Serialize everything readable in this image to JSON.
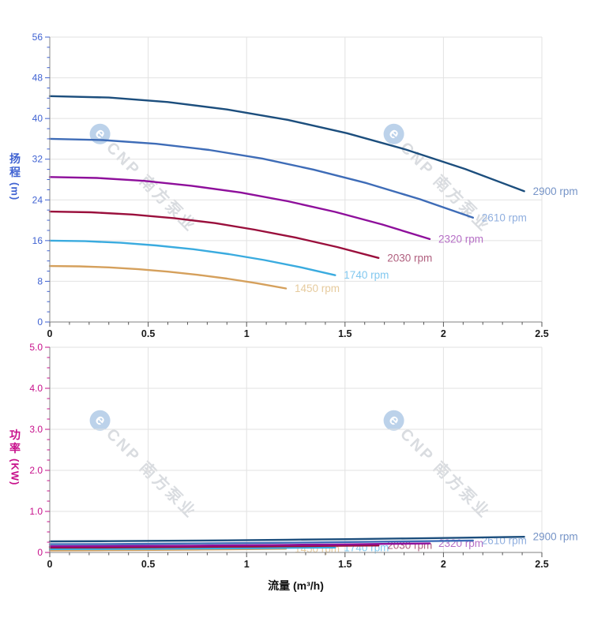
{
  "watermark": {
    "logo_char": "e",
    "text": "CNP 南方泵业",
    "logo_color": "#bcd2ea",
    "text_color": "#d9dce0"
  },
  "axes_style": {
    "x_tick_label_color": "#1a1a1a",
    "grid_color": "#e2e2e2",
    "axis_line_color": "#9b9b9b",
    "x_tick_mark_color": "#555555"
  },
  "chart_data": [
    {
      "type": "line",
      "title": "",
      "xlabel": "",
      "ylabel": "扬程 (m)",
      "ylabel_parts": [
        "扬",
        "程",
        "(m)"
      ],
      "axis_color": "#3f62d2",
      "xlim": [
        0,
        2.5
      ],
      "ylim": [
        0,
        56
      ],
      "x_ticks": [
        0,
        0.5,
        1,
        1.5,
        2,
        2.5
      ],
      "x_tick_labels": [
        "0",
        "0.5",
        "1",
        "1.5",
        "2",
        "2.5"
      ],
      "x_minor_step": 0.1,
      "y_ticks": [
        0,
        8,
        16,
        24,
        32,
        40,
        48,
        56
      ],
      "y_tick_labels": [
        "0",
        "8",
        "16",
        "24",
        "32",
        "40",
        "48",
        "56"
      ],
      "y_minor_step": 2,
      "grid": true,
      "legend": "inline labels at curve ends",
      "series": [
        {
          "name": "2900 rpm",
          "color": "#1c4e7d",
          "label_color": "#7694c7",
          "x": [
            0,
            0.3,
            0.6,
            0.9,
            1.21,
            1.51,
            1.81,
            2.11,
            2.41
          ],
          "y": [
            44.4,
            44.11,
            43.23,
            41.77,
            39.73,
            37.1,
            33.88,
            30.08,
            25.7
          ]
        },
        {
          "name": "2610 rpm",
          "color": "#3e6cb7",
          "label_color": "#90afdf",
          "x": [
            0,
            0.27,
            0.54,
            0.81,
            1.08,
            1.34,
            1.61,
            1.88,
            2.15
          ],
          "y": [
            36.0,
            35.76,
            35.03,
            33.82,
            32.13,
            29.95,
            27.28,
            24.13,
            20.5
          ]
        },
        {
          "name": "2320 rpm",
          "color": "#8e0f9b",
          "label_color": "#b66fc6",
          "x": [
            0,
            0.24,
            0.48,
            0.72,
            0.97,
            1.21,
            1.45,
            1.69,
            1.93
          ],
          "y": [
            28.5,
            28.31,
            27.74,
            26.78,
            25.45,
            23.74,
            21.64,
            19.16,
            16.3
          ]
        },
        {
          "name": "2030 rpm",
          "color": "#9a0f3c",
          "label_color": "#b0607f",
          "x": [
            0,
            0.21,
            0.42,
            0.63,
            0.84,
            1.04,
            1.25,
            1.46,
            1.67
          ],
          "y": [
            21.7,
            21.56,
            21.13,
            20.42,
            19.43,
            18.15,
            16.58,
            14.73,
            12.6
          ]
        },
        {
          "name": "1740 rpm",
          "color": "#3aabdf",
          "label_color": "#82c8ef",
          "x": [
            0,
            0.18,
            0.36,
            0.54,
            0.73,
            0.91,
            1.09,
            1.27,
            1.45
          ],
          "y": [
            16.0,
            15.89,
            15.58,
            15.04,
            14.3,
            13.34,
            12.18,
            10.79,
            9.2
          ]
        },
        {
          "name": "1450 rpm",
          "color": "#d5a05c",
          "label_color": "#e6cb9e",
          "x": [
            0,
            0.15,
            0.3,
            0.45,
            0.6,
            0.75,
            0.9,
            1.05,
            1.2
          ],
          "y": [
            11.0,
            10.93,
            10.73,
            10.38,
            9.9,
            9.28,
            8.53,
            7.63,
            6.6
          ]
        }
      ]
    },
    {
      "type": "line",
      "title": "",
      "xlabel": "流量 (m³/h)",
      "ylabel": "功率 (KW)",
      "ylabel_parts": [
        "功",
        "率",
        "(KW)"
      ],
      "axis_color": "#c7108b",
      "xlim": [
        0,
        2.5
      ],
      "ylim": [
        0,
        5.0
      ],
      "x_ticks": [
        0,
        0.5,
        1,
        1.5,
        2,
        2.5
      ],
      "x_tick_labels": [
        "0",
        "0.5",
        "1",
        "1.5",
        "2",
        "2.5"
      ],
      "x_minor_step": 0.1,
      "y_ticks": [
        0,
        1.0,
        2.0,
        3.0,
        4.0,
        5.0
      ],
      "y_tick_labels": [
        "0",
        "1.0",
        "2.0",
        "3.0",
        "4.0",
        "5.0"
      ],
      "y_minor_step": 0.25,
      "grid": true,
      "legend": "inline labels at curve ends",
      "series": [
        {
          "name": "2900 rpm",
          "color": "#1c4e7d",
          "label_color": "#7694c7",
          "x": [
            0,
            0.3,
            0.6,
            0.9,
            1.21,
            1.51,
            1.81,
            2.11,
            2.41
          ],
          "y": [
            0.27,
            0.275,
            0.284,
            0.295,
            0.309,
            0.324,
            0.341,
            0.36,
            0.38
          ]
        },
        {
          "name": "2610 rpm",
          "color": "#3e6cb7",
          "label_color": "#90afdf",
          "x": [
            0,
            0.27,
            0.54,
            0.81,
            1.08,
            1.34,
            1.61,
            1.88,
            2.15
          ],
          "y": [
            0.2,
            0.204,
            0.211,
            0.221,
            0.232,
            0.244,
            0.258,
            0.274,
            0.29
          ]
        },
        {
          "name": "2320 rpm",
          "color": "#8e0f9b",
          "label_color": "#b66fc6",
          "x": [
            0,
            0.24,
            0.48,
            0.72,
            0.97,
            1.21,
            1.45,
            1.69,
            1.93
          ],
          "y": [
            0.15,
            0.153,
            0.159,
            0.166,
            0.175,
            0.185,
            0.195,
            0.207,
            0.22
          ]
        },
        {
          "name": "2030 rpm",
          "color": "#9a0f3c",
          "label_color": "#b0607f",
          "x": [
            0,
            0.21,
            0.42,
            0.63,
            0.84,
            1.04,
            1.25,
            1.46,
            1.67
          ],
          "y": [
            0.12,
            0.122,
            0.126,
            0.131,
            0.138,
            0.145,
            0.152,
            0.161,
            0.17
          ]
        },
        {
          "name": "1740 rpm",
          "color": "#3aabdf",
          "label_color": "#82c8ef",
          "x": [
            0,
            0.18,
            0.36,
            0.54,
            0.73,
            0.91,
            1.09,
            1.27,
            1.45
          ],
          "y": [
            0.08,
            0.082,
            0.085,
            0.089,
            0.094,
            0.1,
            0.106,
            0.113,
            0.12
          ]
        },
        {
          "name": "1450 rpm",
          "color": "#d5a05c",
          "label_color": "#e6cb9e",
          "x": [
            0,
            0.15,
            0.3,
            0.45,
            0.6,
            0.75,
            0.9,
            1.05,
            1.2
          ],
          "y": [
            0.05,
            0.052,
            0.055,
            0.059,
            0.064,
            0.07,
            0.076,
            0.083,
            0.09
          ]
        }
      ]
    }
  ]
}
